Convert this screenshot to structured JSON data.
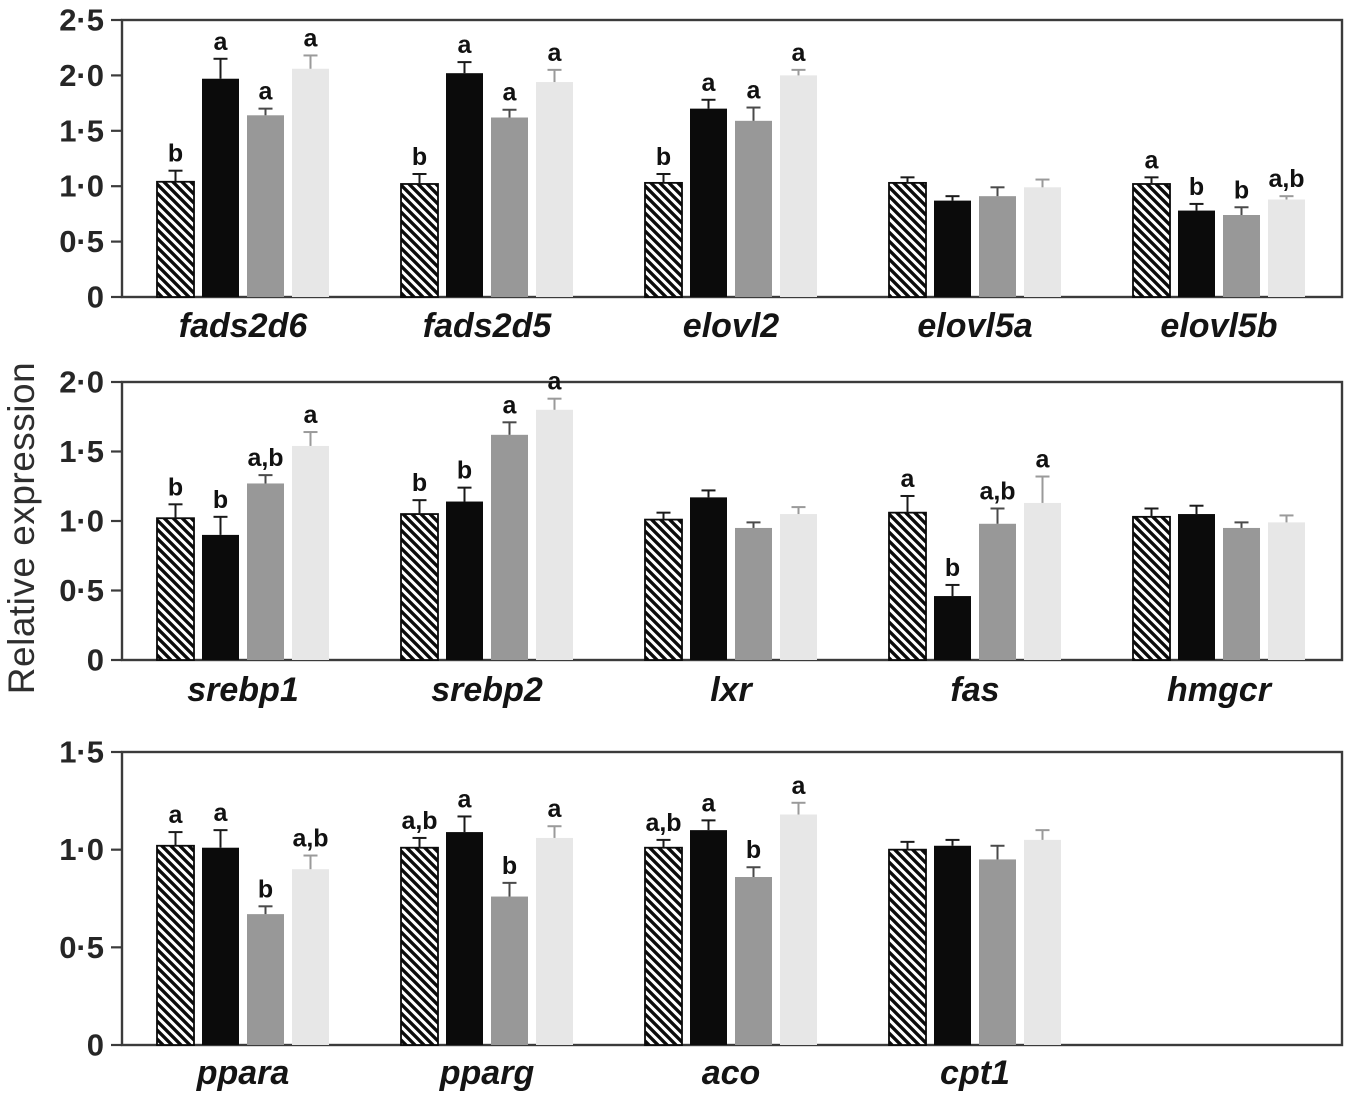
{
  "figure": {
    "ylabel": "Relative expression",
    "colors": {
      "frame": "#3b3b3b",
      "tick_text": "#262626",
      "letter_text": "#111111",
      "gene_label_text": "#141414",
      "bar_black": "#0b0b0b",
      "bar_grey": "#989898",
      "bar_light_grey": "#e7e7e7",
      "hatch_stroke": "#0b0b0b",
      "error_bar_colors": [
        "#1a1a1a",
        "#1a1a1a",
        "#4a4a4a",
        "#9a9a9a"
      ]
    }
  },
  "chart_data": [
    {
      "type": "bar",
      "panel": "top",
      "title": "",
      "xlabel": "",
      "ylabel": "Relative expression",
      "ylim": [
        0,
        2.5
      ],
      "yticks": [
        0,
        0.5,
        1.0,
        1.5,
        2.0,
        2.5
      ],
      "ytick_labels": [
        "0",
        "0·5",
        "1·0",
        "1·5",
        "2·0",
        "2·5"
      ],
      "grid": false,
      "legend": "none",
      "categories": [
        "fads2d6",
        "fads2d5",
        "elovl2",
        "elovl5a",
        "elovl5b"
      ],
      "series": [
        {
          "name": "hatched",
          "values": [
            1.04,
            1.02,
            1.03,
            1.03,
            1.02
          ],
          "errors": [
            0.1,
            0.09,
            0.08,
            0.05,
            0.06
          ]
        },
        {
          "name": "black",
          "values": [
            1.97,
            2.02,
            1.7,
            0.87,
            0.78
          ],
          "errors": [
            0.18,
            0.1,
            0.08,
            0.04,
            0.06
          ]
        },
        {
          "name": "grey",
          "values": [
            1.64,
            1.62,
            1.59,
            0.91,
            0.74
          ],
          "errors": [
            0.06,
            0.07,
            0.12,
            0.08,
            0.07
          ]
        },
        {
          "name": "light-grey",
          "values": [
            2.06,
            1.94,
            2.0,
            0.99,
            0.88
          ],
          "errors": [
            0.12,
            0.11,
            0.05,
            0.07,
            0.03
          ]
        }
      ],
      "sig_letters": [
        [
          "b",
          "a",
          "a",
          "a"
        ],
        [
          "b",
          "a",
          "a",
          "a"
        ],
        [
          "b",
          "a",
          "a",
          "a"
        ],
        [
          "",
          "",
          "",
          ""
        ],
        [
          "a",
          "b",
          "b",
          "a,b"
        ]
      ]
    },
    {
      "type": "bar",
      "panel": "middle",
      "title": "",
      "xlabel": "",
      "ylabel": "Relative expression",
      "ylim": [
        0,
        2.0
      ],
      "yticks": [
        0,
        0.5,
        1.0,
        1.5,
        2.0
      ],
      "ytick_labels": [
        "0",
        "0·5",
        "1·0",
        "1·5",
        "2·0"
      ],
      "grid": false,
      "legend": "none",
      "categories": [
        "srebp1",
        "srebp2",
        "lxr",
        "fas",
        "hmgcr"
      ],
      "series": [
        {
          "name": "hatched",
          "values": [
            1.02,
            1.05,
            1.01,
            1.06,
            1.03
          ],
          "errors": [
            0.1,
            0.1,
            0.05,
            0.12,
            0.06
          ]
        },
        {
          "name": "black",
          "values": [
            0.9,
            1.14,
            1.17,
            0.46,
            1.05
          ],
          "errors": [
            0.13,
            0.1,
            0.05,
            0.08,
            0.06
          ]
        },
        {
          "name": "grey",
          "values": [
            1.27,
            1.62,
            0.95,
            0.98,
            0.95
          ],
          "errors": [
            0.06,
            0.09,
            0.04,
            0.11,
            0.04
          ]
        },
        {
          "name": "light-grey",
          "values": [
            1.54,
            1.8,
            1.05,
            1.13,
            0.99
          ],
          "errors": [
            0.1,
            0.08,
            0.05,
            0.19,
            0.05
          ]
        }
      ],
      "sig_letters": [
        [
          "b",
          "b",
          "a,b",
          "a"
        ],
        [
          "b",
          "b",
          "a",
          "a"
        ],
        [
          "",
          "",
          "",
          ""
        ],
        [
          "a",
          "b",
          "a,b",
          "a"
        ],
        [
          "",
          "",
          "",
          ""
        ]
      ]
    },
    {
      "type": "bar",
      "panel": "bottom",
      "title": "",
      "xlabel": "",
      "ylabel": "Relative expression",
      "ylim": [
        0,
        1.5
      ],
      "yticks": [
        0,
        0.5,
        1.0,
        1.5
      ],
      "ytick_labels": [
        "0",
        "0·5",
        "1·0",
        "1·5"
      ],
      "grid": false,
      "legend": "none",
      "categories": [
        "ppara",
        "pparg",
        "aco",
        "cpt1"
      ],
      "series": [
        {
          "name": "hatched",
          "values": [
            1.02,
            1.01,
            1.01,
            1.0
          ],
          "errors": [
            0.07,
            0.05,
            0.04,
            0.04
          ]
        },
        {
          "name": "black",
          "values": [
            1.01,
            1.09,
            1.1,
            1.02
          ],
          "errors": [
            0.09,
            0.08,
            0.05,
            0.03
          ]
        },
        {
          "name": "grey",
          "values": [
            0.67,
            0.76,
            0.86,
            0.95
          ],
          "errors": [
            0.04,
            0.07,
            0.05,
            0.07
          ]
        },
        {
          "name": "light-grey",
          "values": [
            0.9,
            1.06,
            1.18,
            1.05
          ],
          "errors": [
            0.07,
            0.06,
            0.06,
            0.05
          ]
        }
      ],
      "sig_letters": [
        [
          "a",
          "a",
          "b",
          "a,b"
        ],
        [
          "a,b",
          "a",
          "b",
          "a"
        ],
        [
          "a,b",
          "a",
          "b",
          "a"
        ],
        [
          "",
          "",
          "",
          ""
        ]
      ]
    }
  ]
}
